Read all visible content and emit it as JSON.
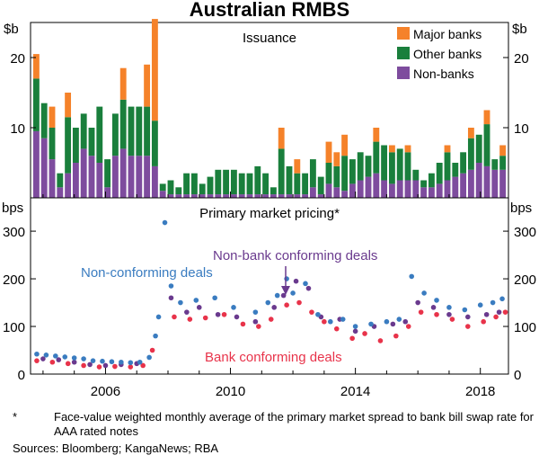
{
  "notes": {
    "footnote_marker": "*",
    "footnote": "Face-value weighted monthly average of the primary market spread to bank bill swap rate for AAA rated notes",
    "sources": "Sources: Bloomberg; KangaNews; RBA"
  },
  "colors": {
    "major_banks": "#f5822a",
    "other_banks": "#1a7f3c",
    "non_banks": "#7e4c9e",
    "non_conforming": "#3a7cc0",
    "non_bank_conforming": "#6a3a8e",
    "bank_conforming": "#e8334a"
  },
  "chart_data": {
    "title": "Australian RMBS",
    "x_ticks": [
      2006,
      2010,
      2014,
      2018
    ],
    "x_range": [
      2003.6,
      2018.9
    ],
    "panels": [
      {
        "type": "bar",
        "stacked": true,
        "title": "Issuance",
        "unit_left": "$b",
        "unit_right": "$b",
        "ylim": [
          0,
          25
        ],
        "y_ticks": [
          10,
          20
        ],
        "legend_position": "top-right",
        "series": [
          {
            "name": "Non-banks",
            "color": "#7e4c9e",
            "values": [
              9.5,
              8.5,
              5.5,
              1.5,
              3.5,
              5,
              7,
              6,
              5,
              1.5,
              6,
              7,
              6,
              6,
              6,
              4.5,
              1,
              0.5,
              0.5,
              0.5,
              0.5,
              0.5,
              0.5,
              0.5,
              0.5,
              0.5,
              0.5,
              0.5,
              0.5,
              0.5,
              0.5,
              0.5,
              0.5,
              0.5,
              0.5,
              1.5,
              0.5,
              2,
              1.5,
              1,
              2,
              2.5,
              3,
              3.5,
              2.5,
              2,
              2.5,
              2.5,
              2.5,
              1.5,
              1.5,
              2,
              2.5,
              3,
              3.5,
              4,
              5,
              4.5,
              4,
              4
            ]
          },
          {
            "name": "Other banks",
            "color": "#1a7f3c",
            "values": [
              7.5,
              5,
              4.5,
              2,
              8,
              5,
              5,
              4,
              8,
              4,
              6,
              7,
              7,
              7,
              7,
              6.5,
              1,
              2,
              1,
              3,
              3,
              1.5,
              2.5,
              3.5,
              3.5,
              3.5,
              3,
              3,
              4,
              3,
              1,
              6.5,
              4,
              3,
              3,
              4,
              2.5,
              3,
              3,
              5,
              3.5,
              4,
              3,
              4.5,
              5,
              4.5,
              4.5,
              4,
              1.5,
              1,
              2,
              3,
              4,
              2,
              3,
              4.5,
              4,
              6,
              1.5,
              2
            ]
          },
          {
            "name": "Major banks",
            "color": "#f5822a",
            "values": [
              3.5,
              0,
              3,
              0,
              3.5,
              0,
              0,
              0,
              0,
              0,
              0,
              4.5,
              0,
              0,
              6,
              14.5,
              0,
              0,
              0,
              0,
              0,
              0,
              0,
              0,
              0,
              0,
              0,
              0,
              0,
              0,
              0,
              3,
              0,
              2,
              0,
              0,
              0,
              3,
              2,
              3,
              0,
              0,
              0,
              2,
              0,
              1,
              0,
              1,
              0,
              0,
              0,
              0,
              1,
              0,
              0,
              1.5,
              0,
              2,
              0,
              1.5
            ]
          }
        ]
      },
      {
        "type": "scatter",
        "title": "Primary market pricing*",
        "unit_left": "bps",
        "unit_right": "bps",
        "ylim": [
          0,
          370
        ],
        "y_ticks": [
          0,
          100,
          200,
          300
        ],
        "annotations": [
          "Non-conforming deals",
          "Non-bank conforming deals",
          "Bank conforming deals"
        ],
        "series": [
          {
            "name": "Non-conforming deals",
            "color": "#3a7cc0",
            "points": [
              [
                2003.8,
                42
              ],
              [
                2004.1,
                40
              ],
              [
                2004.4,
                38
              ],
              [
                2004.7,
                36
              ],
              [
                2005.0,
                34
              ],
              [
                2005.3,
                32
              ],
              [
                2005.6,
                28
              ],
              [
                2005.9,
                27
              ],
              [
                2006.2,
                26
              ],
              [
                2006.5,
                25
              ],
              [
                2006.8,
                24
              ],
              [
                2007.1,
                25
              ],
              [
                2007.4,
                35
              ],
              [
                2007.6,
                80
              ],
              [
                2007.7,
                120
              ],
              [
                2007.9,
                318
              ],
              [
                2008.1,
                185
              ],
              [
                2008.4,
                150
              ],
              [
                2008.9,
                155
              ],
              [
                2009.5,
                160
              ],
              [
                2010.1,
                140
              ],
              [
                2010.8,
                130
              ],
              [
                2011.2,
                150
              ],
              [
                2011.5,
                165
              ],
              [
                2011.8,
                200
              ],
              [
                2012.0,
                170
              ],
              [
                2012.4,
                190
              ],
              [
                2012.8,
                125
              ],
              [
                2013.2,
                110
              ],
              [
                2013.6,
                115
              ],
              [
                2014.0,
                100
              ],
              [
                2014.5,
                105
              ],
              [
                2015.0,
                110
              ],
              [
                2015.4,
                115
              ],
              [
                2015.8,
                205
              ],
              [
                2016.2,
                170
              ],
              [
                2016.6,
                155
              ],
              [
                2017.0,
                140
              ],
              [
                2017.5,
                135
              ],
              [
                2018.0,
                145
              ],
              [
                2018.4,
                150
              ],
              [
                2018.7,
                158
              ]
            ]
          },
          {
            "name": "Non-bank conforming deals",
            "color": "#6a3a8e",
            "points": [
              [
                2004.0,
                32
              ],
              [
                2004.5,
                30
              ],
              [
                2005.0,
                25
              ],
              [
                2005.5,
                20
              ],
              [
                2006.0,
                18
              ],
              [
                2006.5,
                20
              ],
              [
                2007.0,
                22
              ],
              [
                2008.1,
                160
              ],
              [
                2008.6,
                130
              ],
              [
                2009.0,
                140
              ],
              [
                2009.6,
                125
              ],
              [
                2010.2,
                120
              ],
              [
                2010.8,
                110
              ],
              [
                2011.4,
                140
              ],
              [
                2011.7,
                165
              ],
              [
                2012.1,
                195
              ],
              [
                2012.5,
                180
              ],
              [
                2012.9,
                120
              ],
              [
                2013.5,
                115
              ],
              [
                2014.0,
                90
              ],
              [
                2014.6,
                100
              ],
              [
                2015.2,
                105
              ],
              [
                2015.6,
                110
              ],
              [
                2016.0,
                150
              ],
              [
                2016.5,
                140
              ],
              [
                2017.0,
                125
              ],
              [
                2017.6,
                120
              ],
              [
                2018.2,
                125
              ],
              [
                2018.6,
                130
              ]
            ]
          },
          {
            "name": "Bank conforming deals",
            "color": "#e8334a",
            "points": [
              [
                2003.8,
                28
              ],
              [
                2004.3,
                25
              ],
              [
                2004.8,
                22
              ],
              [
                2005.3,
                18
              ],
              [
                2005.8,
                15
              ],
              [
                2006.3,
                16
              ],
              [
                2006.8,
                15
              ],
              [
                2007.2,
                18
              ],
              [
                2007.5,
                50
              ],
              [
                2008.2,
                120
              ],
              [
                2008.7,
                115
              ],
              [
                2009.2,
                118
              ],
              [
                2009.8,
                125
              ],
              [
                2010.4,
                105
              ],
              [
                2010.9,
                100
              ],
              [
                2011.3,
                115
              ],
              [
                2011.8,
                145
              ],
              [
                2012.2,
                150
              ],
              [
                2012.6,
                130
              ],
              [
                2013.0,
                110
              ],
              [
                2013.4,
                95
              ],
              [
                2013.9,
                75
              ],
              [
                2014.3,
                85
              ],
              [
                2014.8,
                70
              ],
              [
                2015.3,
                80
              ],
              [
                2015.7,
                100
              ],
              [
                2016.1,
                130
              ],
              [
                2016.6,
                125
              ],
              [
                2017.1,
                115
              ],
              [
                2017.6,
                100
              ],
              [
                2018.1,
                110
              ],
              [
                2018.5,
                120
              ],
              [
                2018.8,
                130
              ]
            ]
          }
        ]
      }
    ]
  }
}
